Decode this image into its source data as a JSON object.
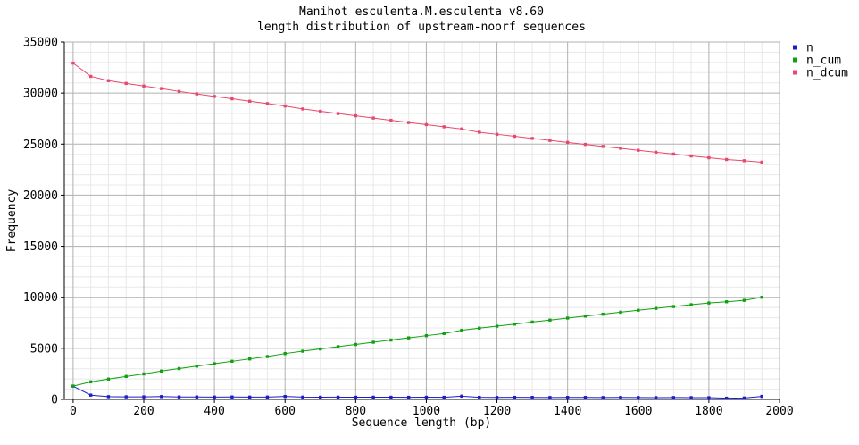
{
  "figure": {
    "title": "Manihot esculenta.M.esculenta v8.60",
    "subtitle": "length distribution of upstream-noorf sequences"
  },
  "chart_data": {
    "type": "line",
    "title": "Manihot esculenta.M.esculenta v8.60",
    "subtitle": "length distribution of upstream-noorf sequences",
    "xlabel": "Sequence length (bp)",
    "ylabel": "Frequency",
    "xlim": [
      -25,
      2000
    ],
    "ylim": [
      0,
      35000
    ],
    "x_ticks": [
      0,
      200,
      400,
      600,
      800,
      1000,
      1200,
      1400,
      1600,
      1800,
      2000
    ],
    "y_ticks": [
      0,
      5000,
      10000,
      15000,
      20000,
      25000,
      30000,
      35000
    ],
    "grid": {
      "major_x": 200,
      "minor_x": 50,
      "major_y": 5000,
      "minor_y": 1000
    },
    "legend_position": "outside-top-right",
    "marker": "square",
    "x": [
      0,
      50,
      100,
      150,
      200,
      250,
      300,
      350,
      400,
      450,
      500,
      550,
      600,
      650,
      700,
      750,
      800,
      850,
      900,
      950,
      1000,
      1050,
      1100,
      1150,
      1200,
      1250,
      1300,
      1350,
      1400,
      1450,
      1500,
      1550,
      1600,
      1650,
      1700,
      1750,
      1800,
      1850,
      1900,
      1950
    ],
    "series": [
      {
        "name": "n",
        "color": "#1c1ccd",
        "values": [
          1300,
          420,
          270,
          255,
          250,
          280,
          245,
          240,
          235,
          240,
          230,
          235,
          290,
          230,
          220,
          225,
          215,
          220,
          215,
          210,
          215,
          210,
          320,
          205,
          195,
          205,
          200,
          190,
          200,
          195,
          185,
          195,
          190,
          180,
          185,
          175,
          170,
          120,
          140,
          300
        ]
      },
      {
        "name": "n_cum",
        "color": "#0fa00f",
        "values": [
          1300,
          1720,
          1990,
          2245,
          2495,
          2775,
          3020,
          3260,
          3495,
          3735,
          3965,
          4200,
          4490,
          4720,
          4940,
          5165,
          5380,
          5600,
          5815,
          6025,
          6240,
          6450,
          6770,
          6975,
          7170,
          7375,
          7575,
          7765,
          7965,
          8160,
          8345,
          8540,
          8730,
          8910,
          9095,
          9270,
          9440,
          9560,
          9700,
          10000
        ]
      },
      {
        "name": "n_dcum",
        "color": "#e8476e",
        "values": [
          32935,
          31635,
          31215,
          30945,
          30690,
          30440,
          30160,
          29915,
          29675,
          29440,
          29200,
          28970,
          28735,
          28445,
          28215,
          27995,
          27770,
          27555,
          27335,
          27120,
          26910,
          26695,
          26485,
          26165,
          25960,
          25765,
          25560,
          25360,
          25170,
          24970,
          24775,
          24590,
          24395,
          24205,
          24025,
          23840,
          23665,
          23495,
          23375,
          23235
        ]
      }
    ]
  }
}
